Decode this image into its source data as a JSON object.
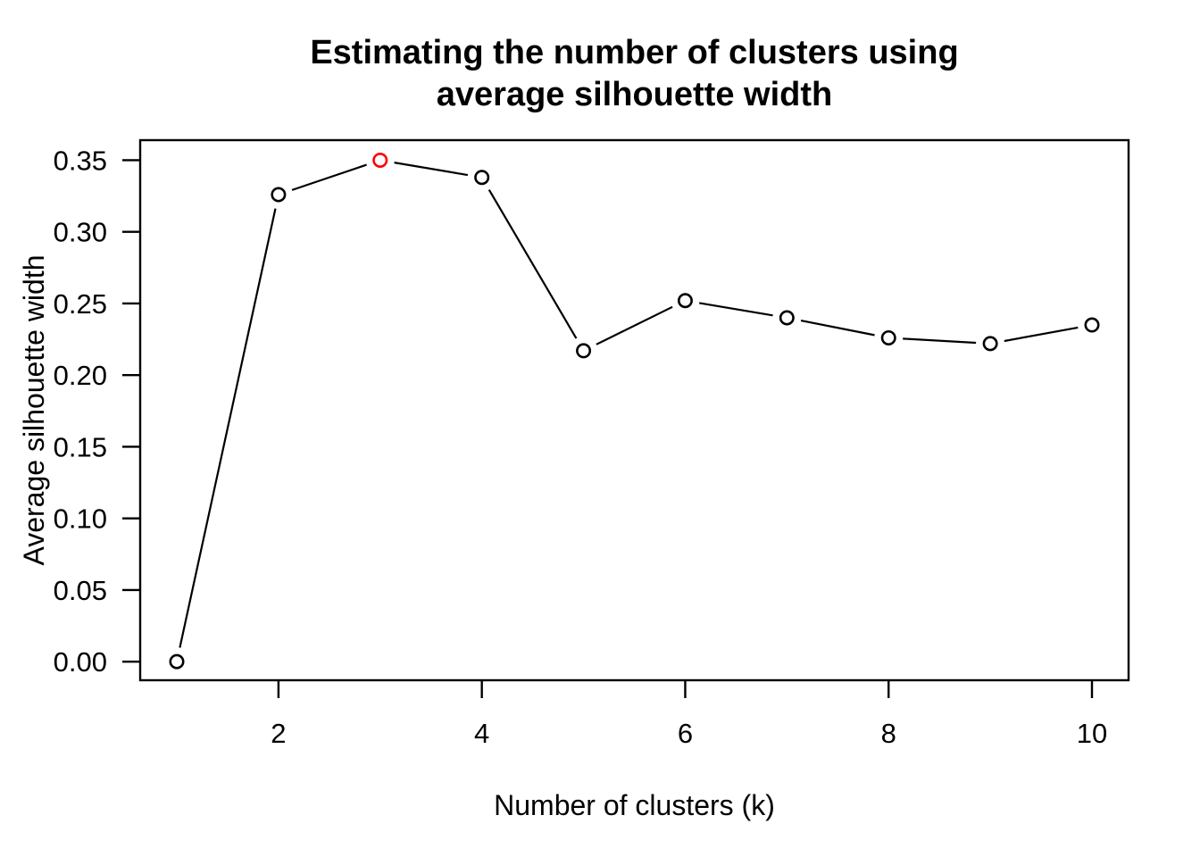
{
  "title": {
    "line1": "Estimating the number of clusters using",
    "line2": "average silhouette width"
  },
  "chart_data": {
    "type": "line",
    "style": "R base plot type='b' (open-circle points joined by line segments with gaps)",
    "title": "Estimating the number of clusters using average silhouette width",
    "xlabel": "Number of clusters (k)",
    "ylabel": "Average silhouette width",
    "x": [
      1,
      2,
      3,
      4,
      5,
      6,
      7,
      8,
      9,
      10
    ],
    "y": [
      0.0,
      0.326,
      0.35,
      0.338,
      0.217,
      0.252,
      0.24,
      0.226,
      0.222,
      0.235
    ],
    "highlight": {
      "index": 2,
      "k": 3,
      "value": 0.35,
      "color": "#FF0000",
      "meaning": "maximum average silhouette width"
    },
    "x_ticks": [
      2,
      4,
      6,
      8,
      10
    ],
    "y_ticks": [
      {
        "value": 0.0,
        "label": "0.00"
      },
      {
        "value": 0.05,
        "label": "0.05"
      },
      {
        "value": 0.1,
        "label": "0.10"
      },
      {
        "value": 0.15,
        "label": "0.15"
      },
      {
        "value": 0.2,
        "label": "0.20"
      },
      {
        "value": 0.25,
        "label": "0.25"
      },
      {
        "value": 0.3,
        "label": "0.30"
      },
      {
        "value": 0.35,
        "label": "0.35"
      }
    ],
    "xlim": [
      0.64,
      10.36
    ],
    "ylim": [
      -0.013,
      0.364
    ],
    "grid": false,
    "legend": "none",
    "marker": "open-circle",
    "colors": {
      "line": "#000000",
      "axis": "#000000",
      "marker_stroke": "#000000",
      "marker_fill": "#FFFFFF",
      "highlight": "#FF0000",
      "text": "#000000",
      "background": "#FFFFFF"
    }
  }
}
